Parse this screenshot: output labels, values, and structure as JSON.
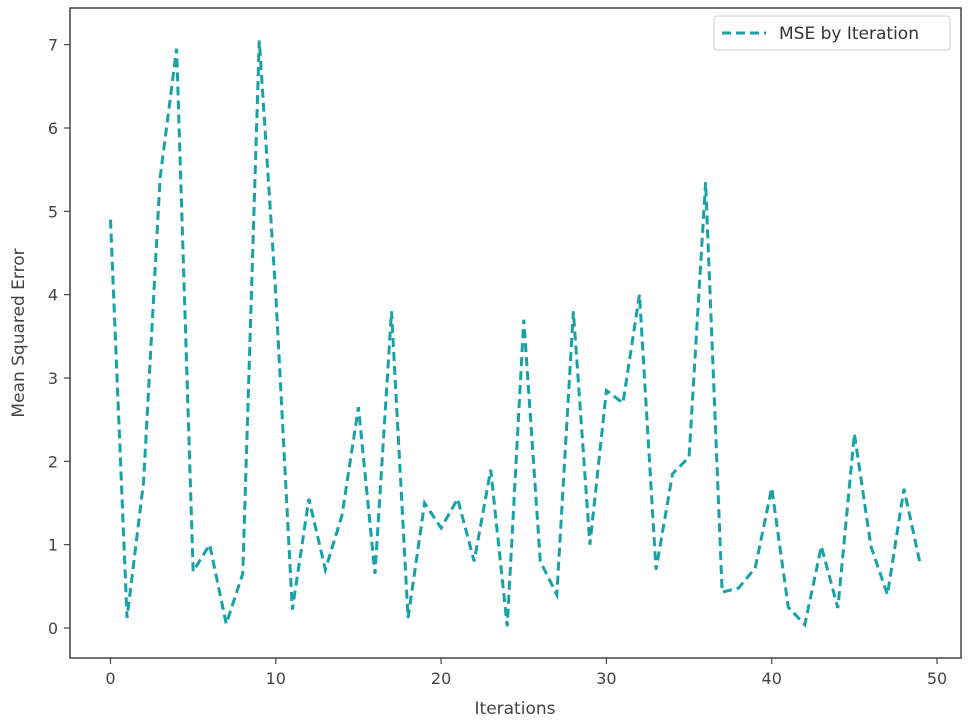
{
  "chart_data": {
    "type": "line",
    "title": "",
    "xlabel": "Iterations",
    "ylabel": "Mean Squared Error",
    "xlim": [
      -2.45,
      51.45
    ],
    "ylim": [
      -0.36,
      7.44
    ],
    "xticks": [
      0,
      10,
      20,
      30,
      40,
      50
    ],
    "yticks": [
      0,
      1,
      2,
      3,
      4,
      5,
      6,
      7
    ],
    "grid": false,
    "legend_position": "top-right",
    "series": [
      {
        "name": "MSE by Iteration",
        "color": "#17a2a8",
        "linestyle": "dashed",
        "x": [
          0,
          1,
          2,
          3,
          4,
          5,
          6,
          7,
          8,
          9,
          10,
          11,
          12,
          13,
          14,
          15,
          16,
          17,
          18,
          19,
          20,
          21,
          22,
          23,
          24,
          25,
          26,
          27,
          28,
          29,
          30,
          31,
          32,
          33,
          34,
          35,
          36,
          37,
          38,
          39,
          40,
          41,
          42,
          43,
          44,
          45,
          46,
          47,
          48,
          49
        ],
        "y": [
          4.9,
          0.12,
          1.75,
          5.4,
          6.95,
          0.68,
          1.0,
          0.05,
          0.65,
          7.05,
          4.0,
          0.22,
          1.55,
          0.7,
          1.35,
          2.65,
          0.65,
          3.8,
          0.12,
          1.5,
          1.2,
          1.55,
          0.8,
          1.9,
          0.02,
          3.7,
          0.8,
          0.4,
          3.8,
          1.0,
          2.85,
          2.7,
          4.0,
          0.7,
          1.85,
          2.05,
          5.35,
          0.43,
          0.48,
          0.72,
          1.68,
          0.25,
          0.04,
          0.98,
          0.24,
          2.33,
          0.98,
          0.4,
          1.67,
          0.75
        ]
      }
    ]
  }
}
